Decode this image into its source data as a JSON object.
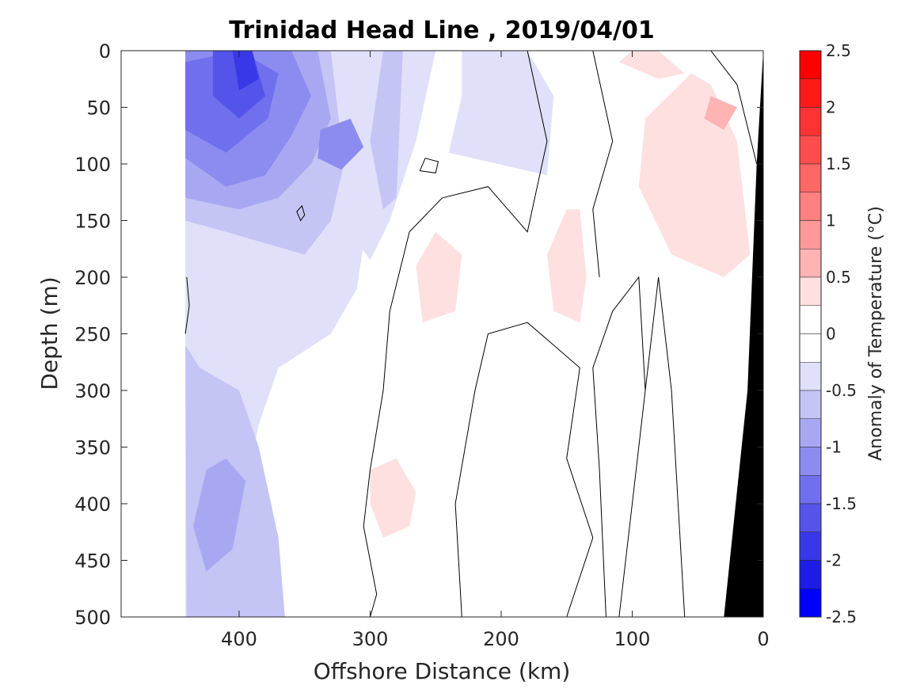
{
  "chart_data": {
    "type": "contour",
    "title": "Trinidad Head Line , 2019/04/01",
    "xlabel": "Offshore Distance (km)",
    "ylabel": "Depth (m)",
    "colorbar_label": "Anomaly of Temperature (°C)",
    "xlim": [
      490,
      0
    ],
    "ylim": [
      500,
      0
    ],
    "x_ticks": [
      400,
      300,
      200,
      100,
      0
    ],
    "y_ticks": [
      0,
      50,
      100,
      150,
      200,
      250,
      300,
      350,
      400,
      450,
      500
    ],
    "colorbar": {
      "range": [
        -2.5,
        2.5
      ],
      "ticks": [
        "2.5",
        "2",
        "1.5",
        "1",
        "0.5",
        "0",
        "-0.5",
        "-1",
        "-1.5",
        "-2",
        "-2.5"
      ],
      "levels": [
        {
          "from": 2.25,
          "to": 2.5,
          "color": "#ff0000"
        },
        {
          "from": 2.0,
          "to": 2.25,
          "color": "#ff1a1a"
        },
        {
          "from": 1.75,
          "to": 2.0,
          "color": "#ff3333"
        },
        {
          "from": 1.5,
          "to": 1.75,
          "color": "#ff4d4d"
        },
        {
          "from": 1.25,
          "to": 1.5,
          "color": "#ff6666"
        },
        {
          "from": 1.0,
          "to": 1.25,
          "color": "#ff8080"
        },
        {
          "from": 0.75,
          "to": 1.0,
          "color": "#ff9999"
        },
        {
          "from": 0.5,
          "to": 0.75,
          "color": "#ffb3b3"
        },
        {
          "from": 0.25,
          "to": 0.5,
          "color": "#ffe0e0"
        },
        {
          "from": 0.0,
          "to": 0.25,
          "color": "#ffffff"
        },
        {
          "from": -0.25,
          "to": 0.0,
          "color": "#ffffff"
        },
        {
          "from": -0.5,
          "to": -0.25,
          "color": "#e0e0fa"
        },
        {
          "from": -0.75,
          "to": -0.5,
          "color": "#c4c4f5"
        },
        {
          "from": -1.0,
          "to": -0.75,
          "color": "#a8a8f2"
        },
        {
          "from": -1.25,
          "to": -1.0,
          "color": "#8c8cf0"
        },
        {
          "from": -1.5,
          "to": -1.25,
          "color": "#7070ee"
        },
        {
          "from": -1.75,
          "to": -1.5,
          "color": "#5454ea"
        },
        {
          "from": -2.0,
          "to": -1.75,
          "color": "#3838e8"
        },
        {
          "from": -2.25,
          "to": -2.0,
          "color": "#1c1ce6"
        },
        {
          "from": -2.5,
          "to": -2.25,
          "color": "#0000ff"
        }
      ]
    },
    "regions": [
      {
        "level": -0.375,
        "points": [
          [
            441,
            0
          ],
          [
            380,
            0
          ],
          [
            300,
            0
          ],
          [
            290,
            40
          ],
          [
            300,
            130
          ],
          [
            310,
            210
          ],
          [
            330,
            250
          ],
          [
            370,
            280
          ],
          [
            385,
            330
          ],
          [
            400,
            420
          ],
          [
            415,
            500
          ],
          [
            441,
            500
          ]
        ]
      },
      {
        "level": -0.375,
        "points": [
          [
            320,
            0
          ],
          [
            250,
            0
          ],
          [
            265,
            80
          ],
          [
            285,
            150
          ],
          [
            300,
            185
          ],
          [
            315,
            160
          ],
          [
            310,
            80
          ]
        ]
      },
      {
        "level": -0.375,
        "points": [
          [
            230,
            0
          ],
          [
            180,
            0
          ],
          [
            160,
            40
          ],
          [
            165,
            110
          ],
          [
            240,
            90
          ],
          [
            230,
            40
          ]
        ]
      },
      {
        "level": -0.625,
        "points": [
          [
            441,
            0
          ],
          [
            330,
            0
          ],
          [
            320,
            100
          ],
          [
            330,
            150
          ],
          [
            350,
            180
          ],
          [
            380,
            170
          ],
          [
            410,
            160
          ],
          [
            441,
            150
          ]
        ]
      },
      {
        "level": -0.625,
        "points": [
          [
            441,
            260
          ],
          [
            440,
            500
          ],
          [
            365,
            500
          ],
          [
            370,
            430
          ],
          [
            385,
            350
          ],
          [
            400,
            300
          ],
          [
            430,
            280
          ]
        ]
      },
      {
        "level": -0.625,
        "points": [
          [
            290,
            0
          ],
          [
            275,
            0
          ],
          [
            280,
            130
          ],
          [
            290,
            140
          ],
          [
            300,
            80
          ]
        ]
      },
      {
        "level": -0.875,
        "points": [
          [
            441,
            0
          ],
          [
            340,
            0
          ],
          [
            330,
            60
          ],
          [
            345,
            100
          ],
          [
            370,
            130
          ],
          [
            400,
            140
          ],
          [
            441,
            130
          ]
        ]
      },
      {
        "level": -0.875,
        "points": [
          [
            425,
            370
          ],
          [
            410,
            360
          ],
          [
            395,
            380
          ],
          [
            405,
            440
          ],
          [
            425,
            460
          ],
          [
            435,
            420
          ]
        ]
      },
      {
        "level": -1.125,
        "points": [
          [
            441,
            0
          ],
          [
            360,
            0
          ],
          [
            345,
            40
          ],
          [
            360,
            75
          ],
          [
            380,
            110
          ],
          [
            410,
            120
          ],
          [
            441,
            95
          ]
        ]
      },
      {
        "level": -1.125,
        "points": [
          [
            338,
            70
          ],
          [
            315,
            60
          ],
          [
            305,
            85
          ],
          [
            322,
            105
          ],
          [
            340,
            95
          ]
        ]
      },
      {
        "level": -1.375,
        "points": [
          [
            441,
            10
          ],
          [
            400,
            0
          ],
          [
            370,
            20
          ],
          [
            378,
            60
          ],
          [
            410,
            90
          ],
          [
            441,
            70
          ]
        ]
      },
      {
        "level": -1.625,
        "points": [
          [
            420,
            0
          ],
          [
            390,
            0
          ],
          [
            380,
            40
          ],
          [
            400,
            60
          ],
          [
            420,
            40
          ]
        ]
      },
      {
        "level": -1.875,
        "points": [
          [
            405,
            0
          ],
          [
            390,
            0
          ],
          [
            385,
            25
          ],
          [
            400,
            35
          ]
        ]
      },
      {
        "level": 0.375,
        "points": [
          [
            100,
            0
          ],
          [
            80,
            0
          ],
          [
            60,
            20
          ],
          [
            80,
            25
          ],
          [
            110,
            10
          ]
        ]
      },
      {
        "level": 0.375,
        "points": [
          [
            55,
            20
          ],
          [
            40,
            30
          ],
          [
            20,
            80
          ],
          [
            10,
            180
          ],
          [
            30,
            200
          ],
          [
            70,
            180
          ],
          [
            95,
            120
          ],
          [
            90,
            60
          ]
        ]
      },
      {
        "level": 0.375,
        "points": [
          [
            150,
            140
          ],
          [
            140,
            140
          ],
          [
            135,
            200
          ],
          [
            140,
            240
          ],
          [
            160,
            230
          ],
          [
            165,
            180
          ]
        ]
      },
      {
        "level": 0.375,
        "points": [
          [
            250,
            160
          ],
          [
            230,
            180
          ],
          [
            235,
            230
          ],
          [
            260,
            240
          ],
          [
            265,
            190
          ]
        ]
      },
      {
        "level": 0.375,
        "points": [
          [
            300,
            370
          ],
          [
            280,
            360
          ],
          [
            265,
            390
          ],
          [
            270,
            420
          ],
          [
            290,
            430
          ],
          [
            300,
            400
          ]
        ]
      },
      {
        "level": 0.625,
        "points": [
          [
            40,
            40
          ],
          [
            20,
            50
          ],
          [
            30,
            70
          ],
          [
            45,
            60
          ]
        ]
      }
    ],
    "zero_contours": [
      {
        "closed": false,
        "points": [
          [
            180,
            0
          ],
          [
            165,
            80
          ],
          [
            180,
            160
          ],
          [
            210,
            120
          ],
          [
            245,
            130
          ],
          [
            270,
            160
          ],
          [
            285,
            230
          ],
          [
            290,
            300
          ],
          [
            300,
            370
          ],
          [
            305,
            420
          ],
          [
            295,
            480
          ],
          [
            300,
            500
          ]
        ]
      },
      {
        "closed": false,
        "points": [
          [
            130,
            0
          ],
          [
            115,
            80
          ],
          [
            130,
            140
          ],
          [
            125,
            200
          ]
        ]
      },
      {
        "closed": false,
        "points": [
          [
            40,
            0
          ],
          [
            20,
            30
          ],
          [
            5,
            100
          ]
        ]
      },
      {
        "closed": false,
        "points": [
          [
            230,
            500
          ],
          [
            235,
            400
          ],
          [
            220,
            300
          ],
          [
            210,
            250
          ],
          [
            180,
            240
          ],
          [
            160,
            260
          ],
          [
            140,
            280
          ],
          [
            150,
            360
          ],
          [
            130,
            430
          ],
          [
            150,
            500
          ]
        ]
      },
      {
        "closed": false,
        "points": [
          [
            110,
            500
          ],
          [
            100,
            400
          ],
          [
            90,
            300
          ],
          [
            95,
            200
          ],
          [
            115,
            230
          ],
          [
            130,
            280
          ],
          [
            125,
            370
          ],
          [
            120,
            500
          ]
        ]
      },
      {
        "closed": false,
        "points": [
          [
            60,
            500
          ],
          [
            65,
            400
          ],
          [
            70,
            300
          ],
          [
            80,
            200
          ],
          [
            90,
            300
          ]
        ]
      },
      {
        "closed": true,
        "points": [
          [
            258,
            95
          ],
          [
            248,
            98
          ],
          [
            250,
            108
          ],
          [
            262,
            106
          ]
        ]
      },
      {
        "closed": true,
        "points": [
          [
            352,
            137
          ],
          [
            350,
            145
          ],
          [
            353,
            150
          ],
          [
            356,
            142
          ]
        ]
      },
      {
        "closed": false,
        "points": [
          [
            440,
            200
          ],
          [
            438,
            225
          ],
          [
            441,
            250
          ]
        ]
      }
    ],
    "bathymetry": {
      "color": "#000000",
      "points": [
        [
          0,
          0
        ],
        [
          0,
          500
        ],
        [
          30,
          500
        ],
        [
          12,
          300
        ],
        [
          5,
          100
        ],
        [
          0,
          0
        ]
      ]
    }
  }
}
